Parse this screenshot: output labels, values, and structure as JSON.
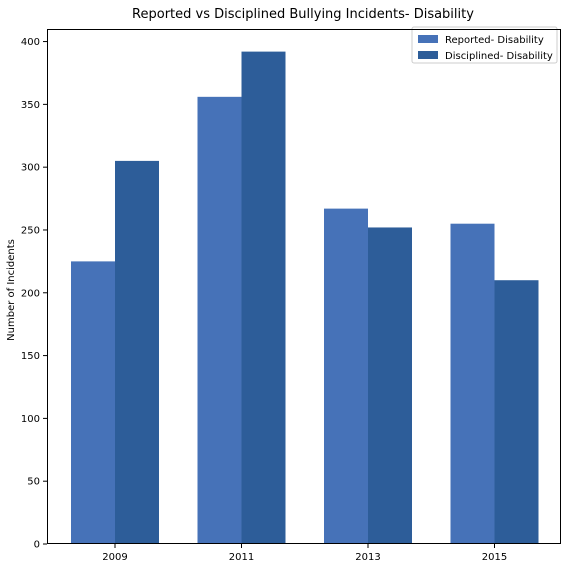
{
  "chart_data": {
    "type": "bar",
    "title": "Reported vs Disciplined Bullying Incidents- Disability",
    "xlabel": "",
    "ylabel": "Number of Incidents",
    "categories": [
      "2009",
      "2011",
      "2013",
      "2015"
    ],
    "series": [
      {
        "name": "Reported- Disability",
        "values": [
          225,
          356,
          267,
          255
        ],
        "color": "#4672b8"
      },
      {
        "name": "Disciplined- Disability",
        "values": [
          305,
          392,
          252,
          210
        ],
        "color": "#2d5d99"
      }
    ],
    "ylim": [
      0,
      410
    ],
    "yticks": [
      0,
      50,
      100,
      150,
      200,
      250,
      300,
      350,
      400
    ],
    "grid": false,
    "legend_position": "top-right"
  }
}
